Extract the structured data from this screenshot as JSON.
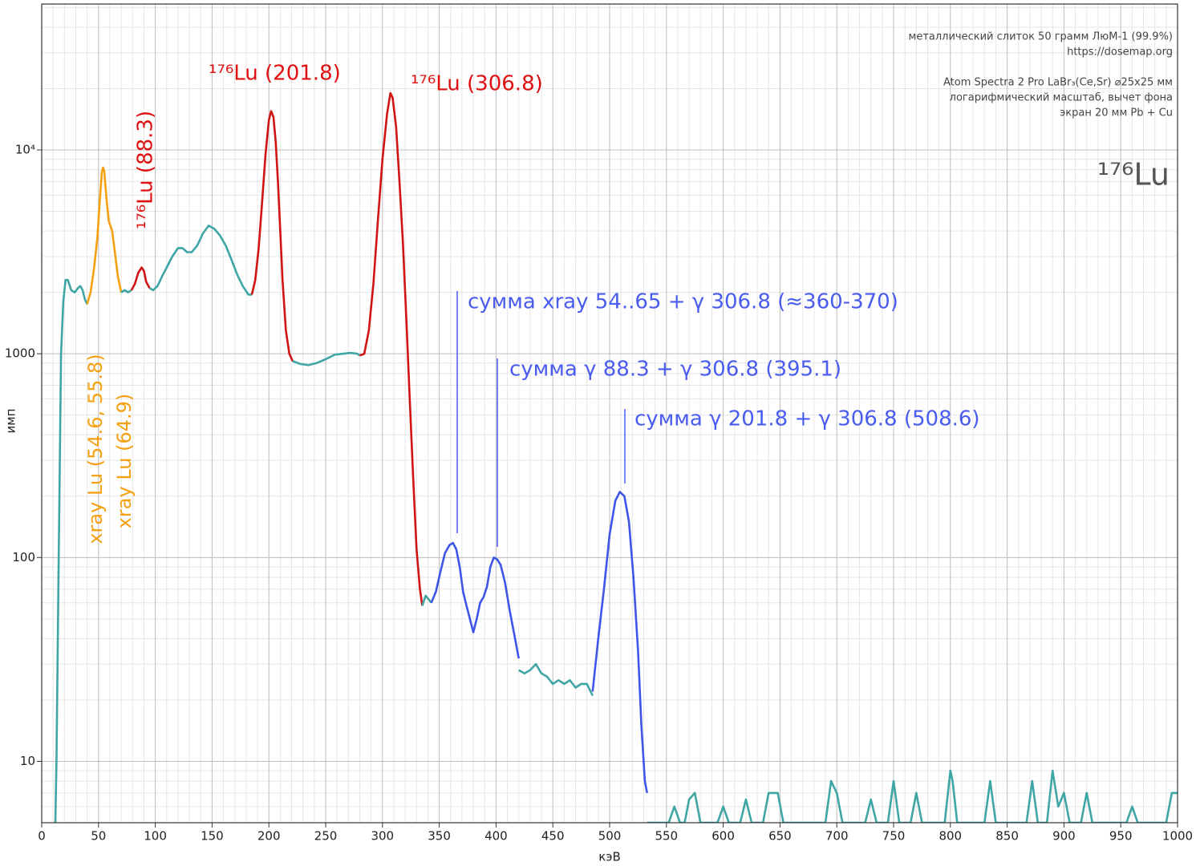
{
  "chart_data": {
    "type": "line",
    "log_y": true,
    "grid": true,
    "xlabel": "кэВ",
    "ylabel": "имп",
    "xlim": [
      0,
      1000
    ],
    "ylim": [
      5,
      52000
    ],
    "xticks": [
      0,
      50,
      100,
      150,
      200,
      250,
      300,
      350,
      400,
      450,
      500,
      550,
      600,
      650,
      700,
      750,
      800,
      850,
      900,
      950,
      1000
    ],
    "yticks": [
      10,
      100,
      1000,
      {
        "value": 10000,
        "label": "10⁴"
      }
    ],
    "series": [
      {
        "color": "#3fa5a5",
        "x": [
          12,
          13,
          15,
          17,
          19,
          21,
          23,
          26,
          29,
          32,
          34,
          36,
          38,
          40
        ],
        "values": [
          5,
          10,
          100,
          1000,
          1800,
          2300,
          2300,
          2050,
          2000,
          2100,
          2150,
          2050,
          1850,
          1750
        ]
      },
      {
        "color": "#f5a011",
        "x": [
          40,
          43,
          46,
          49,
          51,
          53,
          54,
          55,
          57,
          59,
          62,
          64,
          67,
          70
        ],
        "values": [
          1750,
          2000,
          2600,
          3700,
          5500,
          7800,
          8200,
          7900,
          5800,
          4500,
          4000,
          3300,
          2400,
          2000
        ]
      },
      {
        "color": "#3fa5a5",
        "x": [
          70,
          73,
          76,
          79
        ],
        "values": [
          2000,
          2050,
          2000,
          2050
        ]
      },
      {
        "color": "#d01414",
        "x": [
          79,
          82,
          85,
          88,
          90,
          92,
          95
        ],
        "values": [
          2050,
          2200,
          2500,
          2650,
          2550,
          2250,
          2100
        ]
      },
      {
        "color": "#3fa5a5",
        "x": [
          95,
          98,
          102,
          106,
          110,
          115,
          120,
          124,
          128,
          132,
          137,
          142,
          147,
          152,
          157,
          162,
          167,
          172,
          177,
          182,
          185
        ],
        "values": [
          2100,
          2050,
          2150,
          2400,
          2650,
          3000,
          3300,
          3300,
          3150,
          3150,
          3400,
          3900,
          4250,
          4100,
          3800,
          3400,
          2900,
          2450,
          2150,
          1950,
          1950
        ]
      },
      {
        "color": "#d01414",
        "x": [
          185,
          188,
          191,
          194,
          197,
          200,
          202,
          204,
          206,
          208,
          210,
          212,
          215,
          218,
          221
        ],
        "values": [
          1950,
          2300,
          3300,
          5500,
          9500,
          14000,
          15500,
          14500,
          11000,
          7000,
          4000,
          2300,
          1300,
          1000,
          920
        ]
      },
      {
        "color": "#3fa5a5",
        "x": [
          221,
          228,
          235,
          242,
          250,
          258,
          265,
          272,
          278,
          280
        ],
        "values": [
          920,
          890,
          880,
          900,
          940,
          990,
          1000,
          1010,
          1000,
          980
        ]
      },
      {
        "color": "#d01414",
        "x": [
          280,
          284,
          288,
          292,
          296,
          300,
          304,
          307,
          309,
          312,
          315,
          318,
          321,
          324,
          327,
          330,
          333,
          335
        ],
        "values": [
          980,
          1000,
          1300,
          2200,
          4500,
          9000,
          15000,
          19000,
          18000,
          13000,
          7000,
          3500,
          1500,
          600,
          250,
          110,
          70,
          58
        ]
      },
      {
        "color": "#3fa5a5",
        "x": [
          335,
          338,
          341,
          343
        ],
        "values": [
          58,
          65,
          62,
          60
        ]
      },
      {
        "color": "#3f55e8",
        "x": [
          343,
          347,
          351,
          355,
          359,
          362,
          365,
          368,
          371,
          374,
          377,
          380,
          383,
          386,
          389,
          392,
          395,
          398,
          401,
          404,
          408,
          412,
          416,
          420
        ],
        "values": [
          60,
          68,
          85,
          105,
          115,
          118,
          110,
          90,
          68,
          58,
          50,
          43,
          50,
          60,
          64,
          72,
          90,
          100,
          98,
          92,
          75,
          55,
          42,
          32
        ]
      },
      {
        "color": "#3fa5a5",
        "x": [
          420,
          425,
          430,
          435,
          440,
          445,
          450,
          455,
          460,
          465,
          470,
          475,
          480,
          485
        ],
        "values": [
          28,
          27,
          28,
          30,
          27,
          26,
          24,
          25,
          24,
          25,
          23,
          24,
          24,
          21
        ]
      },
      {
        "color": "#3f55e8",
        "x": [
          485,
          490,
          495,
          500,
          505,
          509,
          513,
          517,
          521,
          525,
          528,
          531,
          533
        ],
        "values": [
          22,
          40,
          70,
          130,
          190,
          210,
          200,
          150,
          80,
          35,
          15,
          8,
          7
        ]
      },
      {
        "color": "#3fa5a5",
        "x": [
          533,
          552,
          557,
          562,
          566,
          570,
          575,
          580,
          595,
          600,
          605,
          615,
          620,
          625,
          635,
          640,
          648,
          653,
          690,
          695,
          700,
          705,
          725,
          730,
          735,
          745,
          750,
          755,
          765,
          770,
          775,
          795,
          800,
          802,
          806,
          830,
          835,
          840,
          867,
          872,
          877,
          885,
          890,
          895,
          900,
          905,
          915,
          920,
          925,
          955,
          960,
          965,
          990,
          995,
          1000
        ],
        "values": [
          5,
          5,
          6,
          5,
          5,
          6.5,
          7,
          5,
          5,
          6,
          5,
          5,
          6.5,
          5,
          5,
          7,
          7,
          5,
          5,
          8,
          7,
          5,
          5,
          6.5,
          5,
          5,
          8,
          5,
          5,
          7,
          5,
          5,
          9,
          8,
          5,
          5,
          8,
          5,
          5,
          8,
          5,
          5,
          9,
          6,
          7,
          5,
          5,
          7,
          5,
          5,
          6,
          5,
          5,
          7,
          7
        ]
      }
    ],
    "annotations": [
      "¹⁷⁶Lu (201.8)",
      "¹⁷⁶Lu (306.8)",
      "¹⁷⁶Lu (88.3)",
      "xray Lu (54.6,  55.8)",
      "xray Lu (64.9)",
      "сумма  xray 54..65 + γ 306.8 (≈360-370)",
      "сумма  γ 88.3 + γ 306.8 (395.1)",
      "сумма  γ 201.8 + γ 306.8 (508.6)"
    ],
    "info": [
      "металлический слиток 50 грамм ЛюМ-1 (99.9%)",
      "https://dosemap.org",
      "Atom Spectra 2 Pro LaBr₃(Ce,Sr) ⌀25x25 мм",
      "логарифмический масштаб, вычет фона",
      "экран 20 мм Pb + Cu"
    ],
    "isotope": "¹⁷⁶Lu"
  }
}
